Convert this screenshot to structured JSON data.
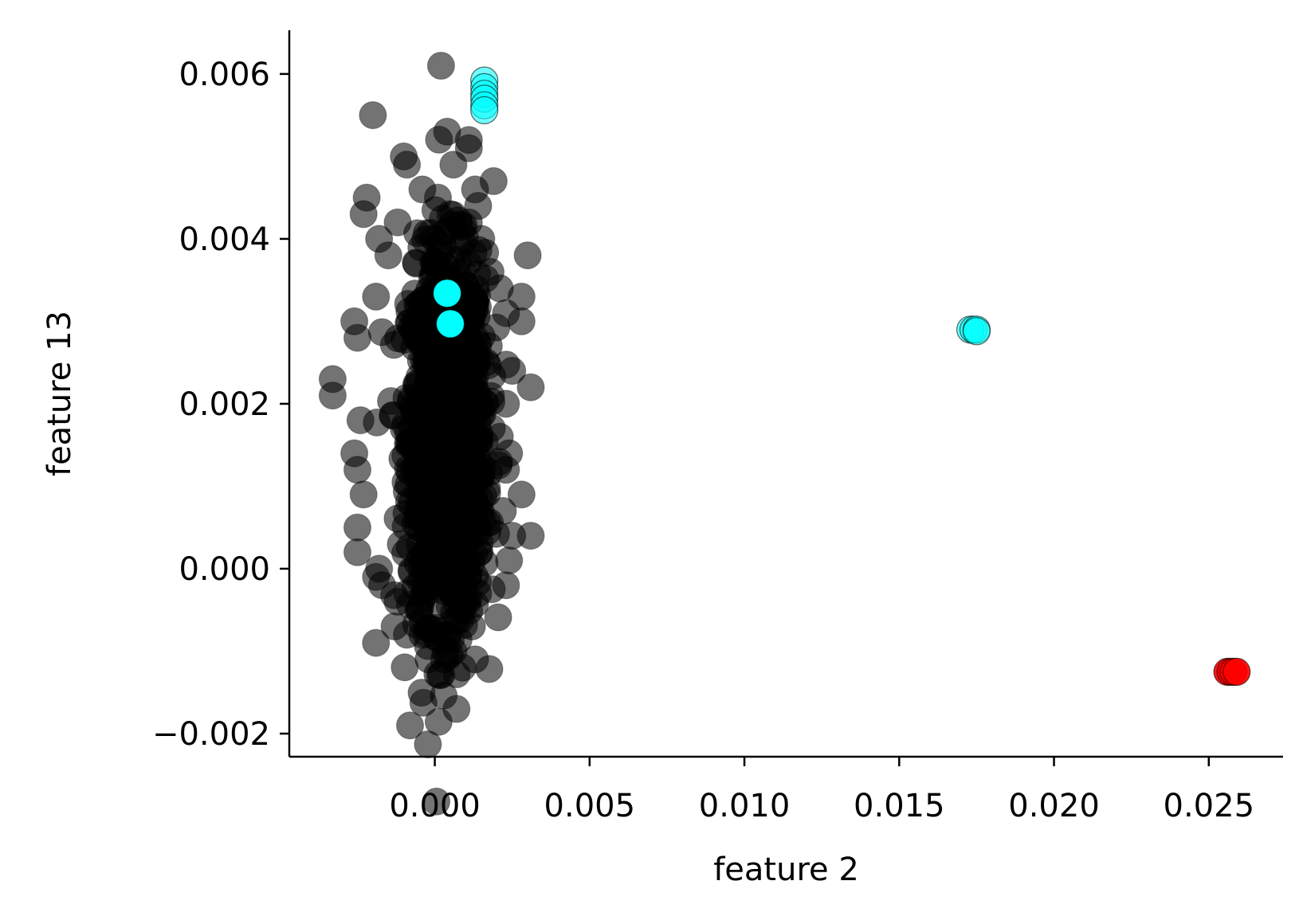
{
  "chart_data": {
    "type": "scatter",
    "title": "",
    "xlabel": "feature 2",
    "ylabel": "feature 13",
    "xlim": [
      -0.0047,
      0.0274
    ],
    "ylim": [
      -0.00228,
      0.00653
    ],
    "xticks": [
      0.0,
      0.005,
      0.01,
      0.015,
      0.02,
      0.025
    ],
    "xtick_labels": [
      "0.000",
      "0.005",
      "0.010",
      "0.015",
      "0.020",
      "0.025"
    ],
    "yticks": [
      -0.002,
      0.0,
      0.002,
      0.004,
      0.006
    ],
    "ytick_labels": [
      "−0.002",
      "0.000",
      "0.002",
      "0.004",
      "0.006"
    ],
    "grid": false,
    "legend": "none",
    "colors": {
      "normal": "#000000",
      "highlight_cyan": "#00ffff",
      "highlight_red": "#ff0000",
      "axis": "#000000"
    },
    "cluster": {
      "center": [
        0.0004,
        0.0016
      ],
      "std": [
        0.0011,
        0.0011
      ],
      "count": 1200
    },
    "series": [
      {
        "color": "#000000",
        "opacity": 0.55,
        "points": [
          [
            0.0002,
            0.0061
          ],
          [
            -0.002,
            0.0055
          ],
          [
            0.0004,
            0.0053
          ],
          [
            0.0011,
            0.0052
          ],
          [
            -0.001,
            0.005
          ],
          [
            0.0011,
            0.0051
          ],
          [
            -0.0009,
            0.0049
          ],
          [
            0.0006,
            0.0049
          ],
          [
            0.0019,
            0.0047
          ],
          [
            0.0013,
            0.0046
          ],
          [
            -0.0004,
            0.0046
          ],
          [
            -0.0022,
            0.0045
          ],
          [
            0.0014,
            0.0044
          ],
          [
            -0.0023,
            0.0043
          ],
          [
            0.0011,
            0.0042
          ],
          [
            -0.0018,
            0.004
          ],
          [
            0.0015,
            0.004
          ],
          [
            0.003,
            0.0038
          ],
          [
            -0.0015,
            0.0038
          ],
          [
            0.0018,
            0.0036
          ],
          [
            0.0021,
            0.0034
          ],
          [
            -0.0019,
            0.0033
          ],
          [
            0.0028,
            0.0033
          ],
          [
            0.0023,
            0.0031
          ],
          [
            -0.0026,
            0.003
          ],
          [
            0.0028,
            0.003
          ],
          [
            -0.0025,
            0.0028
          ],
          [
            -0.0033,
            0.0023
          ],
          [
            0.0025,
            0.0024
          ],
          [
            0.0031,
            0.0022
          ],
          [
            -0.0033,
            0.0021
          ],
          [
            0.0023,
            0.002
          ],
          [
            -0.0024,
            0.0018
          ],
          [
            0.0021,
            0.0016
          ],
          [
            -0.0026,
            0.0014
          ],
          [
            0.0024,
            0.0014
          ],
          [
            -0.0025,
            0.0012
          ],
          [
            0.0023,
            0.0012
          ],
          [
            0.0028,
            0.0009
          ],
          [
            -0.0023,
            0.0009
          ],
          [
            0.0022,
            0.0007
          ],
          [
            0.0031,
            0.0004
          ],
          [
            -0.0025,
            0.0005
          ],
          [
            0.0025,
            0.0004
          ],
          [
            -0.0025,
            0.0002
          ],
          [
            0.0024,
            0.0001
          ],
          [
            -0.0018,
            0.0
          ],
          [
            0.0023,
            -0.0002
          ],
          [
            -0.0019,
            -0.0001
          ],
          [
            -0.0017,
            -0.0002
          ],
          [
            0.0014,
            -0.0003
          ],
          [
            -0.0012,
            -0.0004
          ],
          [
            -0.0005,
            -0.0005
          ],
          [
            0.0009,
            -0.0005
          ],
          [
            -0.0013,
            -0.0007
          ],
          [
            0.0012,
            -0.0007
          ],
          [
            -0.0009,
            -0.0008
          ],
          [
            -0.0019,
            -0.0009
          ],
          [
            -0.0004,
            -0.0008
          ],
          [
            0.0004,
            -0.0008
          ],
          [
            0.0006,
            -0.001
          ],
          [
            -0.0002,
            -0.0011
          ],
          [
            0.0003,
            -0.0011
          ],
          [
            0.0013,
            -0.0011
          ],
          [
            0.0009,
            -0.0012
          ],
          [
            0.0007,
            -0.0017
          ],
          [
            -0.0008,
            -0.0019
          ],
          [
            0.0005,
            0.0043
          ],
          [
            -0.0006,
            0.0037
          ],
          [
            0.0008,
            0.0039
          ],
          [
            0.0001,
            0.0045
          ],
          [
            -0.0012,
            0.0042
          ]
        ]
      },
      {
        "color": "#00ffff",
        "opacity": 0.55,
        "edge": "#000000",
        "points": [
          [
            0.0016,
            0.00592
          ],
          [
            0.0016,
            0.00584
          ],
          [
            0.0016,
            0.00576
          ],
          [
            0.0016,
            0.0057
          ],
          [
            0.0016,
            0.00562
          ],
          [
            0.0016,
            0.00556
          ],
          [
            0.0173,
            0.0029
          ],
          [
            0.0174,
            0.0029
          ],
          [
            0.0175,
            0.0029
          ],
          [
            0.0175,
            0.00288
          ]
        ]
      },
      {
        "color": "#00ffff",
        "opacity": 1.0,
        "points": [
          [
            0.0004,
            0.00334
          ],
          [
            0.0005,
            0.00297
          ]
        ]
      },
      {
        "color": "#ff0000",
        "opacity": 0.9,
        "edge": "#000000",
        "points": [
          [
            0.0256,
            -0.00125
          ],
          [
            0.0257,
            -0.00125
          ],
          [
            0.0258,
            -0.00125
          ],
          [
            0.0259,
            -0.00125
          ]
        ]
      }
    ]
  }
}
